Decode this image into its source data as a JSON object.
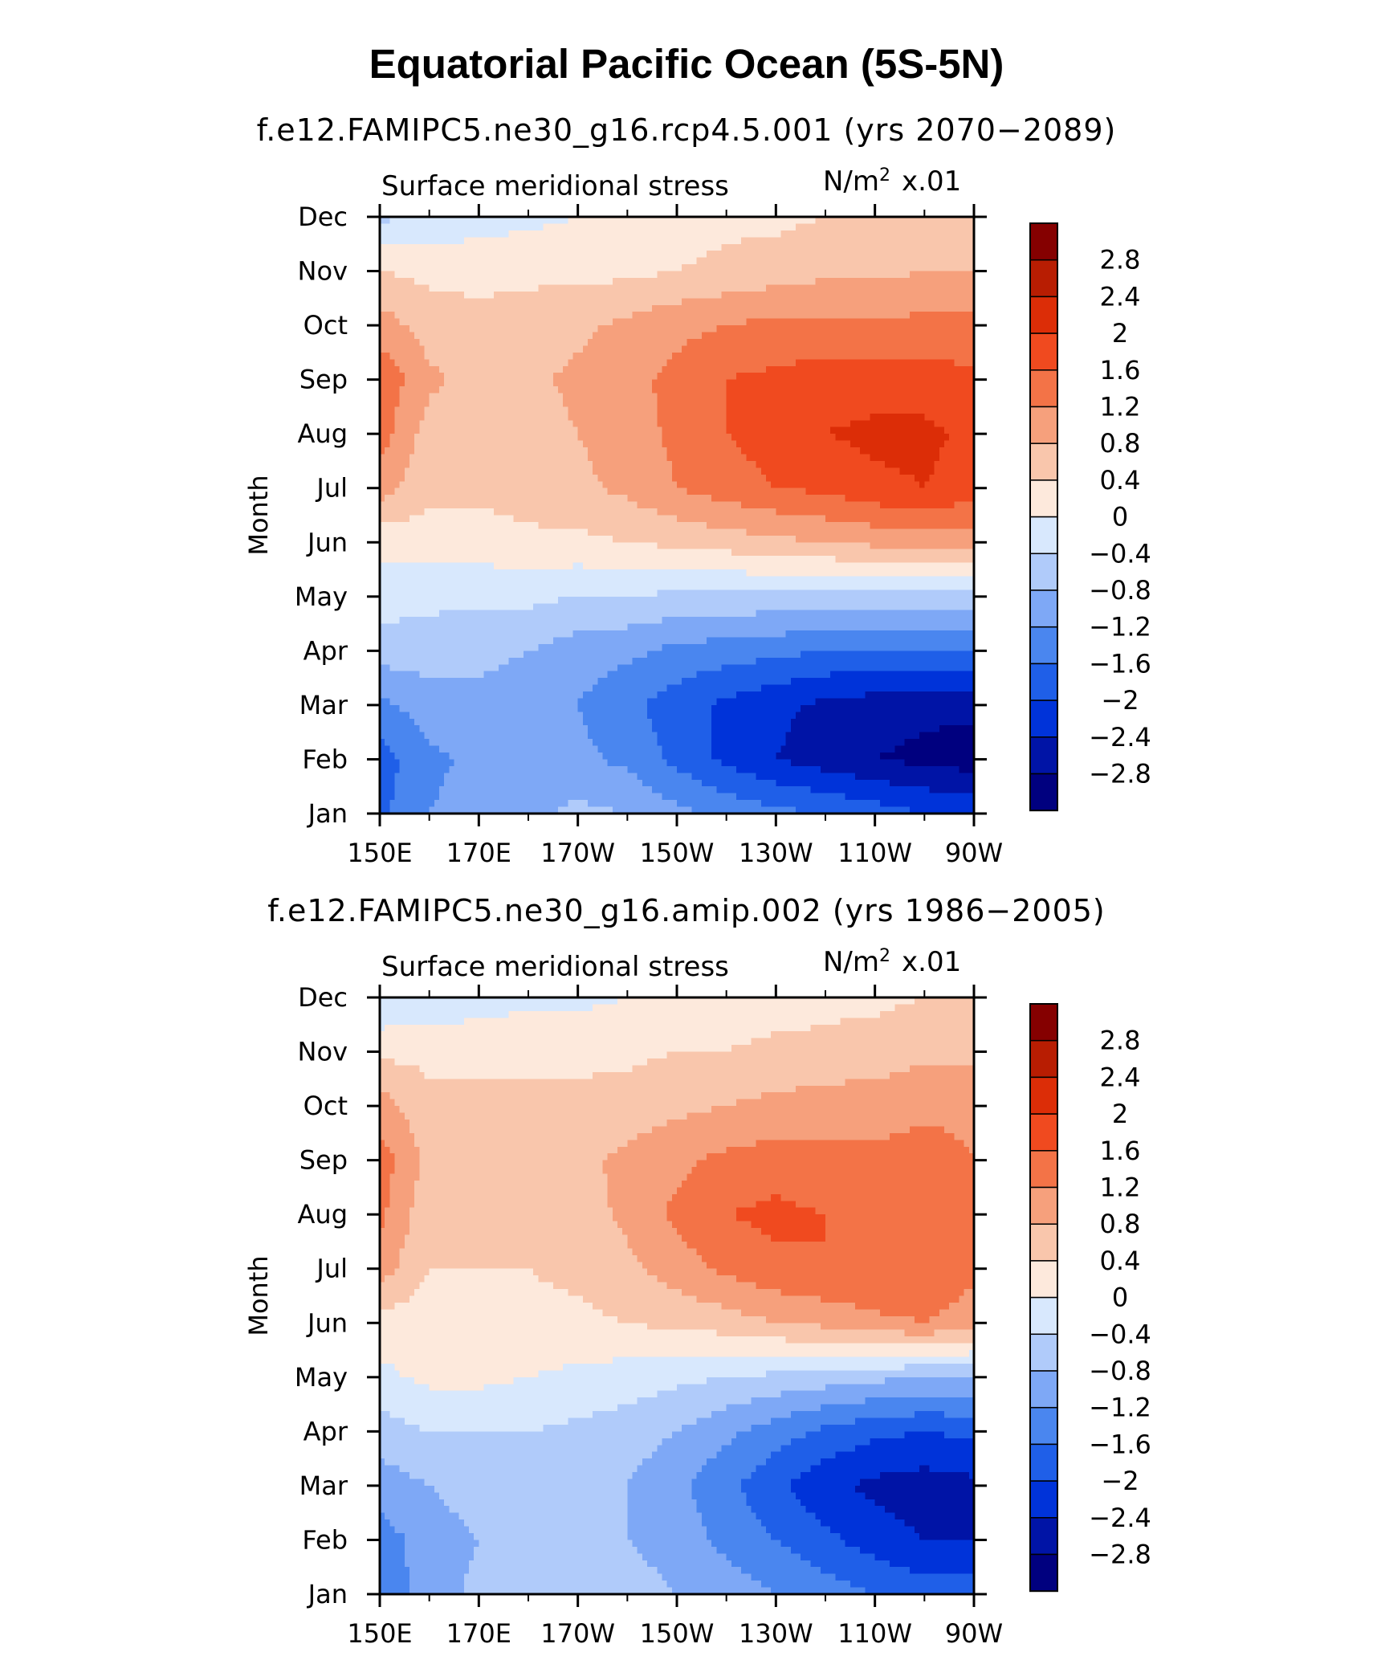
{
  "title": "Equatorial Pacific Ocean (5S-5N)",
  "colors": {
    "levels": [
      "#00007f",
      "#0014a6",
      "#0033d9",
      "#1f5fe8",
      "#4a86ef",
      "#7ea8f6",
      "#b0cbfa",
      "#d8e8fd",
      "#fde9dc",
      "#f9c6ac",
      "#f6a07c",
      "#f37347",
      "#f04a1f",
      "#dc2d07",
      "#b81d02",
      "#850000"
    ]
  },
  "panels": [
    {
      "subtitle": "f.e12.FAMIPC5.ne30_g16.rcp4.5.001 (yrs 2070−2089)",
      "variable_label": "Surface meridional stress",
      "units_label": "N/m",
      "units_sup": "2",
      "units_scale": "x.01"
    },
    {
      "subtitle": "f.e12.FAMIPC5.ne30_g16.amip.002 (yrs 1986−2005)",
      "variable_label": "Surface meridional stress",
      "units_label": "N/m",
      "units_sup": "2",
      "units_scale": "x.01"
    }
  ],
  "chart_data": [
    {
      "type": "heatmap",
      "title": "f.e12.FAMIPC5.ne30_g16.rcp4.5.001 (yrs 2070−2089)",
      "xlabel": "",
      "ylabel": "Month",
      "x_ticks": [
        "150E",
        "170E",
        "170W",
        "150W",
        "130W",
        "110W",
        "90W"
      ],
      "x_degE": [
        150,
        170,
        190,
        210,
        230,
        250,
        270
      ],
      "xlim": [
        150,
        270
      ],
      "y_ticks": [
        "Jan",
        "Feb",
        "Mar",
        "Apr",
        "May",
        "Jun",
        "Jul",
        "Aug",
        "Sep",
        "Oct",
        "Nov",
        "Dec"
      ],
      "colorbar_labels": [
        "2.8",
        "2.4",
        "2",
        "1.6",
        "1.2",
        "0.8",
        "0.4",
        "0",
        "−0.4",
        "−0.8",
        "−1.2",
        "−1.6",
        "−2",
        "−2.4",
        "−2.8"
      ],
      "contour_interval": 0.4,
      "x": [
        150,
        160,
        170,
        180,
        190,
        200,
        210,
        220,
        230,
        240,
        250,
        260,
        270
      ],
      "months": [
        "Jan",
        "Feb",
        "Mar",
        "Apr",
        "May",
        "Jun",
        "Jul",
        "Aug",
        "Sep",
        "Oct",
        "Nov",
        "Dec"
      ],
      "z": [
        [
          -1.7,
          -1.2,
          -1.0,
          -0.9,
          -0.7,
          -0.8,
          -1.1,
          -1.3,
          -1.5,
          -1.6,
          -1.8,
          -2.0,
          -2.1
        ],
        [
          -1.8,
          -1.3,
          -1.1,
          -1.1,
          -1.1,
          -1.3,
          -1.7,
          -2.1,
          -2.4,
          -2.6,
          -2.8,
          -2.9,
          -3.0
        ],
        [
          -1.3,
          -1.0,
          -0.9,
          -1.0,
          -1.2,
          -1.5,
          -1.8,
          -2.1,
          -2.3,
          -2.5,
          -2.6,
          -2.7,
          -2.7
        ],
        [
          -0.6,
          -0.6,
          -0.7,
          -0.8,
          -1.0,
          -1.1,
          -1.3,
          -1.4,
          -1.5,
          -1.6,
          -1.6,
          -1.6,
          -1.6
        ],
        [
          -0.2,
          -0.3,
          -0.3,
          -0.3,
          -0.4,
          -0.4,
          -0.5,
          -0.5,
          -0.5,
          -0.5,
          -0.6,
          -0.6,
          -0.6
        ],
        [
          0.1,
          0.2,
          0.2,
          0.3,
          0.3,
          0.4,
          0.5,
          0.6,
          0.7,
          0.8,
          0.9,
          1.0,
          1.0
        ],
        [
          1.0,
          0.5,
          0.5,
          0.6,
          0.7,
          0.9,
          1.2,
          1.4,
          1.6,
          1.7,
          1.9,
          2.0,
          1.8
        ],
        [
          1.4,
          0.6,
          0.6,
          0.6,
          0.8,
          1.0,
          1.3,
          1.6,
          1.8,
          2.0,
          2.1,
          2.1,
          1.9
        ],
        [
          1.5,
          0.9,
          0.6,
          0.7,
          0.9,
          1.1,
          1.3,
          1.6,
          1.7,
          1.8,
          1.8,
          1.8,
          1.7
        ],
        [
          1.0,
          0.6,
          0.5,
          0.6,
          0.7,
          0.9,
          1.1,
          1.2,
          1.3,
          1.3,
          1.3,
          1.3,
          1.3
        ],
        [
          0.4,
          0.3,
          0.3,
          0.3,
          0.3,
          0.3,
          0.4,
          0.5,
          0.6,
          0.7,
          0.7,
          0.8,
          0.8
        ],
        [
          -0.5,
          -0.3,
          -0.2,
          -0.1,
          0.0,
          0.1,
          0.2,
          0.3,
          0.3,
          0.4,
          0.4,
          0.5,
          0.5
        ]
      ]
    },
    {
      "type": "heatmap",
      "title": "f.e12.FAMIPC5.ne30_g16.amip.002 (yrs 1986−2005)",
      "xlabel": "",
      "ylabel": "Month",
      "x_ticks": [
        "150E",
        "170E",
        "170W",
        "150W",
        "130W",
        "110W",
        "90W"
      ],
      "x_degE": [
        150,
        170,
        190,
        210,
        230,
        250,
        270
      ],
      "xlim": [
        150,
        270
      ],
      "y_ticks": [
        "Jan",
        "Feb",
        "Mar",
        "Apr",
        "May",
        "Jun",
        "Jul",
        "Aug",
        "Sep",
        "Oct",
        "Nov",
        "Dec"
      ],
      "colorbar_labels": [
        "2.8",
        "2.4",
        "2",
        "1.6",
        "1.2",
        "0.8",
        "0.4",
        "0",
        "−0.4",
        "−0.8",
        "−1.2",
        "−1.6",
        "−2",
        "−2.4",
        "−2.8"
      ],
      "contour_interval": 0.4,
      "x": [
        150,
        160,
        170,
        180,
        190,
        200,
        210,
        220,
        230,
        240,
        250,
        260,
        270
      ],
      "months": [
        "Jan",
        "Feb",
        "Mar",
        "Apr",
        "May",
        "Jun",
        "Jul",
        "Aug",
        "Sep",
        "Oct",
        "Nov",
        "Dec"
      ],
      "z": [
        [
          -1.5,
          -1.0,
          -0.7,
          -0.7,
          -0.6,
          -0.6,
          -0.8,
          -1.0,
          -1.2,
          -1.4,
          -1.6,
          -1.8,
          -1.8
        ],
        [
          -1.4,
          -1.0,
          -0.8,
          -0.7,
          -0.7,
          -0.8,
          -1.0,
          -1.3,
          -1.6,
          -1.9,
          -2.2,
          -2.4,
          -2.4
        ],
        [
          -1.0,
          -0.8,
          -0.6,
          -0.5,
          -0.6,
          -0.8,
          -1.1,
          -1.5,
          -1.9,
          -2.3,
          -2.5,
          -2.6,
          -2.5
        ],
        [
          -0.6,
          -0.4,
          -0.4,
          -0.4,
          -0.5,
          -0.6,
          -0.8,
          -1.1,
          -1.4,
          -1.7,
          -1.9,
          -2.0,
          -1.9
        ],
        [
          -0.1,
          0.1,
          0.1,
          0.0,
          -0.1,
          -0.2,
          -0.3,
          -0.4,
          -0.5,
          -0.6,
          -0.7,
          -0.8,
          -0.8
        ],
        [
          0.2,
          0.2,
          0.2,
          0.3,
          0.3,
          0.4,
          0.5,
          0.6,
          0.8,
          0.9,
          1.1,
          1.2,
          1.0
        ],
        [
          1.0,
          0.4,
          0.4,
          0.4,
          0.5,
          0.7,
          1.0,
          1.3,
          1.5,
          1.6,
          1.6,
          1.5,
          1.3
        ],
        [
          1.3,
          0.5,
          0.5,
          0.5,
          0.6,
          0.9,
          1.3,
          1.6,
          1.7,
          1.6,
          1.5,
          1.5,
          1.3
        ],
        [
          1.4,
          0.7,
          0.5,
          0.6,
          0.7,
          0.9,
          1.1,
          1.3,
          1.4,
          1.3,
          1.3,
          1.4,
          1.2
        ],
        [
          1.0,
          0.5,
          0.5,
          0.5,
          0.5,
          0.6,
          0.7,
          0.8,
          0.9,
          1.0,
          1.0,
          1.1,
          1.1
        ],
        [
          0.3,
          0.3,
          0.3,
          0.3,
          0.3,
          0.3,
          0.4,
          0.4,
          0.5,
          0.5,
          0.6,
          0.7,
          0.7
        ],
        [
          -0.4,
          -0.3,
          -0.2,
          -0.1,
          -0.1,
          0.0,
          0.1,
          0.2,
          0.2,
          0.3,
          0.3,
          0.4,
          0.4
        ]
      ]
    }
  ]
}
